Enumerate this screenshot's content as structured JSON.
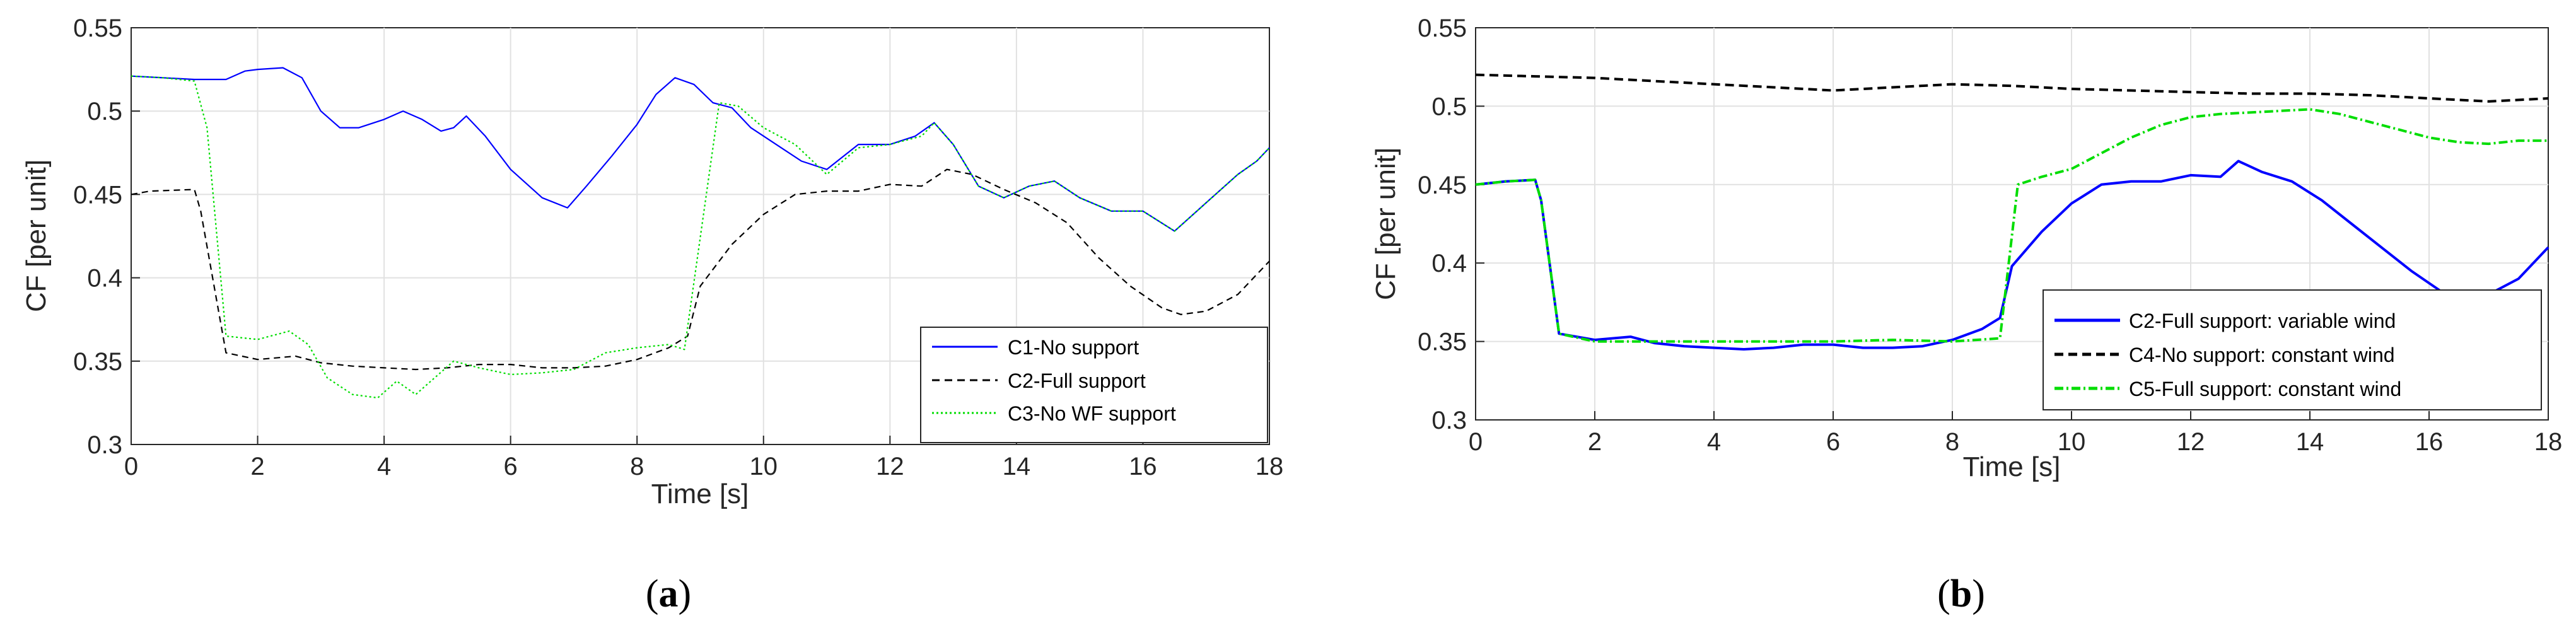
{
  "chart_data": [
    {
      "id": "a",
      "type": "line",
      "caption": {
        "open": "(",
        "letter": "a",
        "close": ")"
      },
      "xlabel": "Time [s]",
      "ylabel": "CF [per unit]",
      "xlim": [
        0,
        18
      ],
      "ylim": [
        0.3,
        0.55
      ],
      "xticks": [
        0,
        2,
        4,
        6,
        8,
        10,
        12,
        14,
        16,
        18
      ],
      "yticks": [
        0.3,
        0.35,
        0.4,
        0.45,
        0.5,
        0.55
      ],
      "ytick_labels": [
        "0.3",
        "0.35",
        "0.4",
        "0.45",
        "0.5",
        "0.55"
      ],
      "grid": true,
      "legend_position": "bottom-right",
      "series": [
        {
          "name": "C1-No support",
          "color": "#0000ff",
          "style": "solid",
          "x": [
            0,
            0.5,
            1.0,
            1.5,
            1.8,
            2.0,
            2.4,
            2.7,
            3.0,
            3.3,
            3.6,
            4.0,
            4.3,
            4.6,
            4.9,
            5.1,
            5.3,
            5.6,
            6.0,
            6.5,
            6.9,
            7.2,
            7.6,
            8.0,
            8.3,
            8.6,
            8.9,
            9.2,
            9.5,
            9.8,
            10.2,
            10.6,
            11.0,
            11.5,
            12.0,
            12.4,
            12.7,
            13.0,
            13.4,
            13.8,
            14.2,
            14.6,
            15.0,
            15.5,
            16.0,
            16.5,
            17.0,
            17.5,
            17.8,
            18.0
          ],
          "values": [
            0.521,
            0.52,
            0.519,
            0.519,
            0.524,
            0.525,
            0.526,
            0.52,
            0.5,
            0.49,
            0.49,
            0.495,
            0.5,
            0.495,
            0.488,
            0.49,
            0.497,
            0.485,
            0.465,
            0.448,
            0.442,
            0.455,
            0.473,
            0.492,
            0.51,
            0.52,
            0.516,
            0.505,
            0.502,
            0.49,
            0.48,
            0.47,
            0.465,
            0.48,
            0.48,
            0.485,
            0.493,
            0.48,
            0.455,
            0.448,
            0.455,
            0.458,
            0.448,
            0.44,
            0.44,
            0.428,
            0.445,
            0.462,
            0.47,
            0.478
          ]
        },
        {
          "name": "C2-Full support",
          "color": "#000000",
          "style": "dashed",
          "x": [
            0,
            0.3,
            1.0,
            1.1,
            1.5,
            2.0,
            2.6,
            3.0,
            3.5,
            4.0,
            4.5,
            5.0,
            5.5,
            6.0,
            6.5,
            7.0,
            7.5,
            8.0,
            8.5,
            8.8,
            9.0,
            9.5,
            10.0,
            10.5,
            11.0,
            11.5,
            12.0,
            12.5,
            12.9,
            13.3,
            13.8,
            14.3,
            14.8,
            15.3,
            15.8,
            16.3,
            16.6,
            17.0,
            17.5,
            18.0
          ],
          "values": [
            0.45,
            0.452,
            0.453,
            0.44,
            0.355,
            0.351,
            0.353,
            0.349,
            0.347,
            0.346,
            0.345,
            0.346,
            0.348,
            0.348,
            0.346,
            0.346,
            0.347,
            0.351,
            0.358,
            0.365,
            0.395,
            0.42,
            0.438,
            0.45,
            0.452,
            0.452,
            0.456,
            0.455,
            0.465,
            0.462,
            0.453,
            0.445,
            0.433,
            0.412,
            0.395,
            0.382,
            0.378,
            0.38,
            0.39,
            0.41
          ]
        },
        {
          "name": "C3-No WF support",
          "color": "#00dd00",
          "style": "dotted",
          "x": [
            0,
            0.5,
            1.0,
            1.2,
            1.5,
            2.0,
            2.5,
            2.8,
            3.1,
            3.5,
            3.9,
            4.2,
            4.5,
            4.8,
            5.1,
            5.5,
            6.0,
            6.5,
            7.0,
            7.5,
            8.0,
            8.5,
            8.75,
            9.3,
            9.6,
            10.0,
            10.5,
            11.0,
            11.5,
            12.0,
            12.5,
            12.7,
            13.0,
            13.4,
            13.8,
            14.2,
            14.6,
            15.0,
            15.5,
            16.0,
            16.5,
            17.0,
            17.5,
            17.8,
            18.0
          ],
          "values": [
            0.521,
            0.52,
            0.518,
            0.49,
            0.365,
            0.363,
            0.368,
            0.36,
            0.34,
            0.33,
            0.328,
            0.338,
            0.33,
            0.34,
            0.35,
            0.346,
            0.342,
            0.343,
            0.345,
            0.355,
            0.358,
            0.36,
            0.357,
            0.505,
            0.503,
            0.49,
            0.48,
            0.462,
            0.478,
            0.48,
            0.485,
            0.493,
            0.48,
            0.455,
            0.448,
            0.455,
            0.458,
            0.448,
            0.44,
            0.44,
            0.428,
            0.445,
            0.462,
            0.47,
            0.478
          ]
        }
      ]
    },
    {
      "id": "b",
      "type": "line",
      "caption": {
        "open": "(",
        "letter": "b",
        "close": ")"
      },
      "xlabel": "Time [s]",
      "ylabel": "CF [per unit]",
      "xlim": [
        0,
        18
      ],
      "ylim": [
        0.3,
        0.55
      ],
      "xticks": [
        0,
        2,
        4,
        6,
        8,
        10,
        12,
        14,
        16,
        18
      ],
      "yticks": [
        0.3,
        0.35,
        0.4,
        0.45,
        0.5,
        0.55
      ],
      "ytick_labels": [
        "0.3",
        "0.35",
        "0.4",
        "0.45",
        "0.5",
        "0.55"
      ],
      "grid": true,
      "legend_position": "right",
      "series": [
        {
          "name": "C2-Full support: variable wind",
          "color": "#0000ff",
          "style": "solid",
          "x": [
            0,
            0.5,
            1.0,
            1.1,
            1.4,
            2.0,
            2.6,
            3.0,
            3.5,
            4.0,
            4.5,
            5.0,
            5.5,
            6.0,
            6.5,
            7.0,
            7.5,
            8.0,
            8.5,
            8.8,
            9.0,
            9.5,
            10.0,
            10.5,
            11.0,
            11.5,
            12.0,
            12.5,
            12.8,
            13.2,
            13.7,
            14.2,
            14.7,
            15.2,
            15.7,
            16.2,
            16.5,
            17.0,
            17.5,
            18.0
          ],
          "values": [
            0.45,
            0.452,
            0.453,
            0.44,
            0.355,
            0.351,
            0.353,
            0.349,
            0.347,
            0.346,
            0.345,
            0.346,
            0.348,
            0.348,
            0.346,
            0.346,
            0.347,
            0.351,
            0.358,
            0.365,
            0.398,
            0.42,
            0.438,
            0.45,
            0.452,
            0.452,
            0.456,
            0.455,
            0.465,
            0.458,
            0.452,
            0.44,
            0.425,
            0.41,
            0.395,
            0.382,
            0.378,
            0.38,
            0.39,
            0.41
          ]
        },
        {
          "name": "C4-No support: constant wind",
          "color": "#000000",
          "style": "dashed",
          "x": [
            0,
            1,
            2,
            3,
            4,
            5,
            6,
            7,
            8,
            9,
            10,
            11,
            12,
            13,
            14,
            15,
            16,
            17,
            18
          ],
          "values": [
            0.52,
            0.519,
            0.518,
            0.516,
            0.514,
            0.512,
            0.51,
            0.512,
            0.514,
            0.513,
            0.511,
            0.51,
            0.509,
            0.508,
            0.508,
            0.507,
            0.505,
            0.503,
            0.505
          ]
        },
        {
          "name": "C5-Full support: constant wind",
          "color": "#00dd00",
          "style": "dashdot",
          "x": [
            0,
            0.5,
            1.0,
            1.1,
            1.4,
            2.0,
            3.0,
            4.0,
            5.0,
            6.0,
            7.0,
            8.0,
            8.8,
            9.1,
            9.5,
            10.0,
            10.5,
            11.0,
            11.5,
            12.0,
            12.5,
            13.0,
            13.5,
            14.0,
            14.5,
            15.0,
            15.5,
            16.0,
            16.5,
            17.0,
            17.5,
            18.0
          ],
          "values": [
            0.45,
            0.452,
            0.453,
            0.44,
            0.355,
            0.35,
            0.35,
            0.35,
            0.35,
            0.35,
            0.351,
            0.35,
            0.352,
            0.45,
            0.455,
            0.46,
            0.47,
            0.48,
            0.488,
            0.493,
            0.495,
            0.496,
            0.497,
            0.498,
            0.495,
            0.49,
            0.485,
            0.48,
            0.477,
            0.476,
            0.478,
            0.478
          ]
        }
      ]
    }
  ]
}
